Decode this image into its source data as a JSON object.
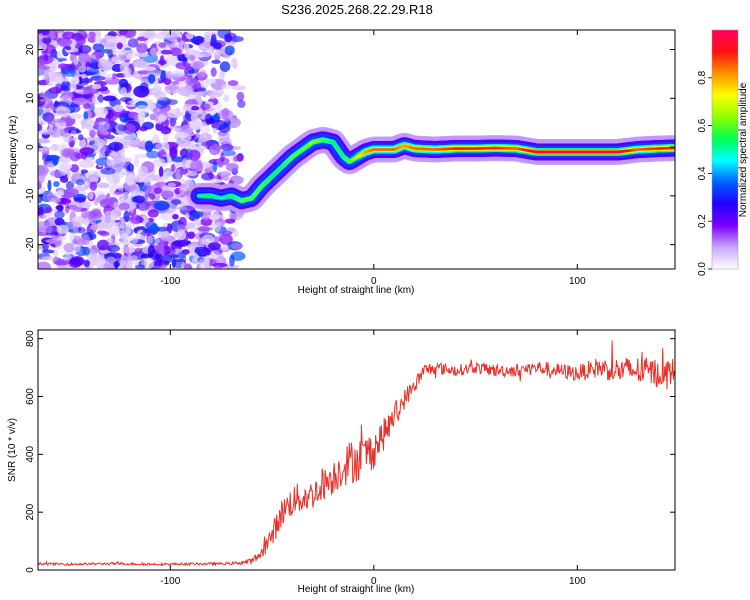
{
  "title": "S236.2025.268.22.29.R18",
  "chart_data": [
    {
      "type": "heatmap",
      "name": "spectrogram",
      "xlabel": "Height of straight line (km)",
      "ylabel": "Frequency (Hz)",
      "xlim": [
        -165,
        148
      ],
      "ylim": [
        -25,
        24
      ],
      "xticks": [
        -100,
        0,
        100
      ],
      "xtick_labels": [
        "-100",
        "0",
        "100"
      ],
      "yticks": [
        -20,
        -10,
        0,
        10,
        20
      ],
      "ytick_labels": [
        "-20",
        "-10",
        "0",
        "10",
        "20"
      ],
      "noise_region_x": [
        -165,
        -65
      ],
      "ridge": {
        "x": [
          -86,
          -80,
          -75,
          -70,
          -65,
          -60,
          -55,
          -50,
          -45,
          -40,
          -35,
          -30,
          -25,
          -20,
          -15,
          -12,
          -8,
          -4,
          0,
          5,
          10,
          15,
          20,
          30,
          40,
          50,
          60,
          70,
          80,
          90,
          100,
          110,
          120,
          130,
          140,
          148
        ],
        "y": [
          -10,
          -10,
          -10.5,
          -10,
          -11,
          -10.5,
          -8,
          -6,
          -4,
          -2,
          -0.5,
          1,
          1.5,
          1,
          -2,
          -3,
          -2,
          -1,
          -0.5,
          -0.5,
          -0.5,
          0.3,
          -0.3,
          -0.5,
          -0.3,
          -0.3,
          -0.2,
          -0.3,
          -1,
          -1,
          -1,
          -1,
          -1,
          -0.5,
          -0.3,
          -0.2
        ],
        "amplitude": [
          0.5,
          0.55,
          0.5,
          0.55,
          0.6,
          0.6,
          0.6,
          0.55,
          0.55,
          0.6,
          0.6,
          0.65,
          0.6,
          0.55,
          0.55,
          0.6,
          0.7,
          0.8,
          0.85,
          0.85,
          0.85,
          0.8,
          0.85,
          0.85,
          0.9,
          0.9,
          0.9,
          0.85,
          0.98,
          0.98,
          0.98,
          0.98,
          0.98,
          0.85,
          0.9,
          0.9
        ]
      },
      "colorbar": {
        "label": "Normalized spectral amplitude",
        "range": [
          0,
          1
        ],
        "ticks": [
          0,
          0.2,
          0.4,
          0.6,
          0.8
        ],
        "tick_labels": [
          "0.0",
          "0.2",
          "0.4",
          "0.6",
          "0.8"
        ],
        "colors": [
          "#ffffff",
          "#c9a8ff",
          "#7a00ff",
          "#2200ff",
          "#0060ff",
          "#00ffff",
          "#00ff50",
          "#90ff00",
          "#ffff00",
          "#ff9000",
          "#ff1010",
          "#ff0060"
        ]
      }
    },
    {
      "type": "line",
      "name": "snr",
      "xlabel": "Height of straight line (km)",
      "ylabel": "SNR (10 * v/v)",
      "xlim": [
        -165,
        148
      ],
      "ylim": [
        0,
        830
      ],
      "xticks": [
        -100,
        0,
        100
      ],
      "xtick_labels": [
        "-100",
        "0",
        "100"
      ],
      "yticks": [
        0,
        200,
        400,
        600,
        800
      ],
      "ytick_labels": [
        "0",
        "200",
        "400",
        "600",
        "800"
      ],
      "color": "#e8312a",
      "series": [
        {
          "name": "SNR",
          "x": [
            -165,
            -150,
            -130,
            -110,
            -90,
            -70,
            -60,
            -55,
            -50,
            -45,
            -40,
            -35,
            -30,
            -25,
            -20,
            -15,
            -10,
            -5,
            0,
            5,
            10,
            15,
            20,
            25,
            30,
            40,
            50,
            60,
            70,
            80,
            90,
            100,
            110,
            120,
            130,
            140,
            148
          ],
          "values": [
            22,
            20,
            22,
            20,
            21,
            22,
            30,
            60,
            120,
            200,
            240,
            250,
            260,
            300,
            320,
            360,
            380,
            390,
            420,
            470,
            530,
            590,
            640,
            690,
            700,
            690,
            700,
            690,
            690,
            700,
            690,
            680,
            700,
            690,
            690,
            680,
            690
          ],
          "noise": [
            4,
            4,
            4,
            4,
            4,
            4,
            10,
            20,
            40,
            50,
            55,
            55,
            50,
            60,
            60,
            70,
            80,
            75,
            70,
            55,
            45,
            35,
            28,
            25,
            22,
            20,
            20,
            22,
            22,
            25,
            25,
            28,
            35,
            45,
            50,
            50,
            45
          ]
        }
      ]
    }
  ]
}
